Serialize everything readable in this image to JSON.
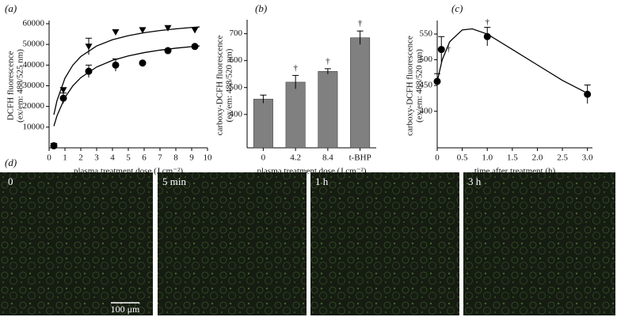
{
  "chart_data": [
    {
      "type": "scatter",
      "panel_label": "(a)",
      "xlabel": "plasma treatment dose (J cm⁻²)",
      "ylabel": [
        "DCFH fluorescence",
        "(ex/em: 488/525 nm)"
      ],
      "xlim": [
        0,
        10
      ],
      "xticks": [
        0,
        1,
        2,
        3,
        4,
        5,
        6,
        7,
        8,
        9,
        10
      ],
      "ylim": [
        0,
        60000
      ],
      "yticks": [
        10000,
        20000,
        30000,
        40000,
        50000,
        60000
      ],
      "series": [
        {
          "marker": "triangle",
          "color": "#000000",
          "x": [
            0.3,
            0.9,
            2.5,
            4.2,
            5.9,
            7.5,
            9.2
          ],
          "values": [
            1000,
            28000,
            49000,
            56000,
            57000,
            58000,
            57000
          ],
          "errors": [
            null,
            null,
            4000,
            null,
            null,
            null,
            null
          ]
        },
        {
          "marker": "circle",
          "color": "#000000",
          "x": [
            0.3,
            0.9,
            2.5,
            4.2,
            5.9,
            7.5,
            9.2
          ],
          "values": [
            1000,
            24000,
            37000,
            40000,
            41000,
            47000,
            49000
          ],
          "errors": [
            null,
            2500,
            3000,
            3000,
            null,
            null,
            null
          ]
        }
      ],
      "fits": [
        {
          "color": "#000000",
          "x": [
            0.3,
            0.5,
            1,
            1.5,
            2,
            3,
            4,
            5,
            6,
            7,
            8,
            9,
            9.5
          ],
          "values": [
            16000,
            22857,
            33684,
            40000,
            44138,
            49231,
            52245,
            54237,
            55652,
            56709,
            57528,
            58182,
            58462
          ]
        },
        {
          "color": "#000000",
          "x": [
            0.3,
            0.5,
            1,
            1.5,
            2,
            3,
            4,
            5,
            6,
            7,
            8,
            9,
            9.5
          ],
          "values": [
            10500,
            15556,
            24348,
            30000,
            33939,
            39070,
            42264,
            44444,
            46027,
            47229,
            48172,
            48932,
            49259
          ]
        }
      ]
    },
    {
      "type": "bar",
      "panel_label": "(b)",
      "xlabel": "plasma treatment dose (J cm⁻²)",
      "ylabel": [
        "carboxy-DCFH fluorescence",
        "(ex/em: 488/520 nm)"
      ],
      "categories": [
        "0",
        "4.2",
        "8.4",
        "t-BHP"
      ],
      "values": [
        457,
        520,
        560,
        685
      ],
      "errors": [
        15,
        25,
        10,
        25
      ],
      "annotations": [
        null,
        "†",
        "†",
        "†"
      ],
      "color": "#808080",
      "ylim": [
        276,
        740
      ],
      "yticks": [
        400,
        500,
        600,
        700
      ]
    },
    {
      "type": "scatter",
      "panel_label": "(c)",
      "xlabel": "time after treatment (h)",
      "ylabel": [
        "carboxy-DCFH fluorescence",
        "(ex/em: 488/520 nm)"
      ],
      "xlim": [
        0,
        3.1
      ],
      "xticks": [
        0,
        0.5,
        {
          "value": 1,
          "label": "1.0"
        },
        1.5,
        {
          "value": 2,
          "label": "2.0"
        },
        2.5,
        {
          "value": 3,
          "label": "3.0"
        }
      ],
      "ylim": [
        329,
        570
      ],
      "yticks": [
        400,
        450,
        500,
        550
      ],
      "series": [
        {
          "marker": "circle",
          "color": "#000000",
          "x": [
            0,
            0.083,
            1,
            3
          ],
          "values": [
            458,
            520,
            545,
            433
          ],
          "errors": [
            15,
            25,
            18,
            18
          ],
          "annotations": [
            null,
            "†",
            "†",
            null
          ]
        }
      ],
      "fits": [
        {
          "color": "#000000",
          "x": [
            0,
            0.1,
            0.25,
            0.5,
            0.7,
            1,
            1.5,
            2,
            2.5,
            3
          ],
          "values": [
            458,
            500,
            535,
            558,
            560,
            550,
            520,
            490,
            460,
            435
          ]
        }
      ]
    }
  ],
  "micrographs": {
    "panel_label": "(d)",
    "labels": [
      "0",
      "5 min",
      "1 h",
      "3 h"
    ],
    "scale_bar": "100 μm"
  }
}
